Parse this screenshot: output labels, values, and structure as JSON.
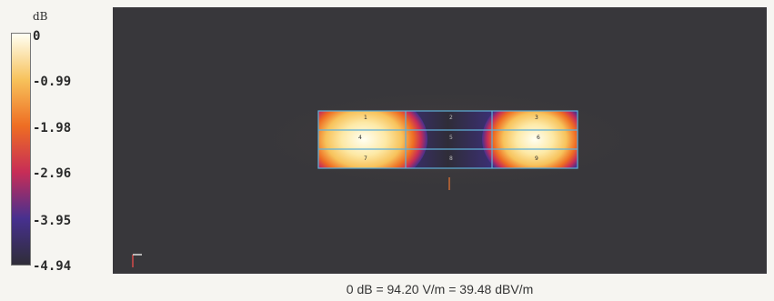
{
  "legend": {
    "unit": "dB",
    "colors": [
      "#fffff3",
      "#f7c25b",
      "#ee6d23",
      "#c72d57",
      "#47308f",
      "#2f2d38"
    ],
    "ticks": [
      {
        "label": "0",
        "value": 0
      },
      {
        "label": "-0.99",
        "value": -0.99
      },
      {
        "label": "-1.98",
        "value": -1.98
      },
      {
        "label": "-2.96",
        "value": -2.96
      },
      {
        "label": "-3.95",
        "value": -3.95
      },
      {
        "label": "-4.94",
        "value": -4.94
      }
    ]
  },
  "plot": {
    "background": "#38373b",
    "grid_labels": [
      "1",
      "2",
      "3",
      "4",
      "5",
      "6",
      "7",
      "8",
      "9"
    ]
  },
  "caption": "0 dB = 94.20 V/m = 39.48 dBV/m"
}
